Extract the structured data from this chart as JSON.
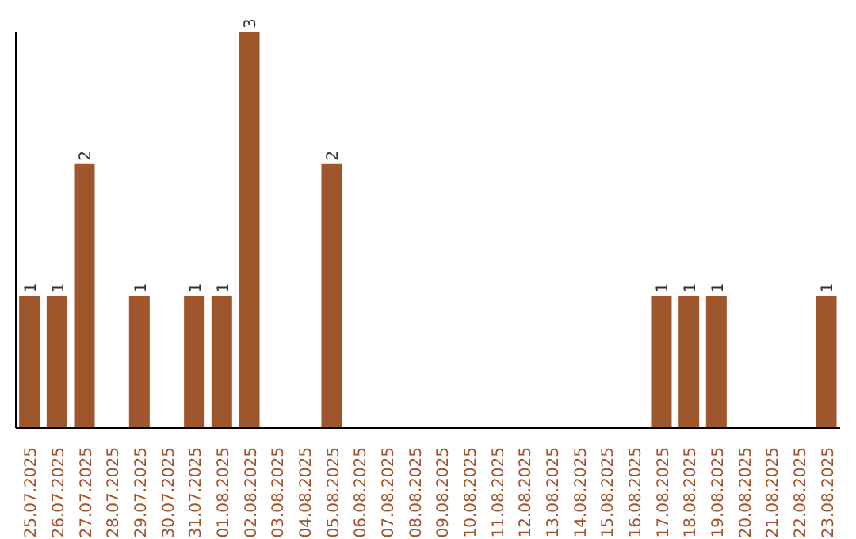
{
  "chart_data": {
    "type": "bar",
    "categories": [
      "25.07.2025",
      "26.07.2025",
      "27.07.2025",
      "28.07.2025",
      "29.07.2025",
      "30.07.2025",
      "31.07.2025",
      "01.08.2025",
      "02.08.2025",
      "03.08.2025",
      "04.08.2025",
      "05.08.2025",
      "06.08.2025",
      "07.08.2025",
      "08.08.2025",
      "09.08.2025",
      "10.08.2025",
      "11.08.2025",
      "12.08.2025",
      "13.08.2025",
      "14.08.2025",
      "15.08.2025",
      "16.08.2025",
      "17.08.2025",
      "18.08.2025",
      "19.08.2025",
      "20.08.2025",
      "21.08.2025",
      "22.08.2025",
      "23.08.2025"
    ],
    "values": [
      1,
      1,
      2,
      0,
      1,
      0,
      1,
      1,
      3,
      0,
      0,
      2,
      0,
      0,
      0,
      0,
      0,
      0,
      0,
      0,
      0,
      0,
      0,
      1,
      1,
      1,
      0,
      0,
      0,
      1
    ],
    "value_labels": [
      "1",
      "1",
      "2",
      null,
      "1",
      null,
      "1",
      "1",
      "3",
      null,
      null,
      "2",
      null,
      null,
      null,
      null,
      null,
      null,
      null,
      null,
      null,
      null,
      null,
      "1",
      "1",
      "1",
      null,
      null,
      null,
      "1"
    ],
    "color": "#a0562c"
  }
}
